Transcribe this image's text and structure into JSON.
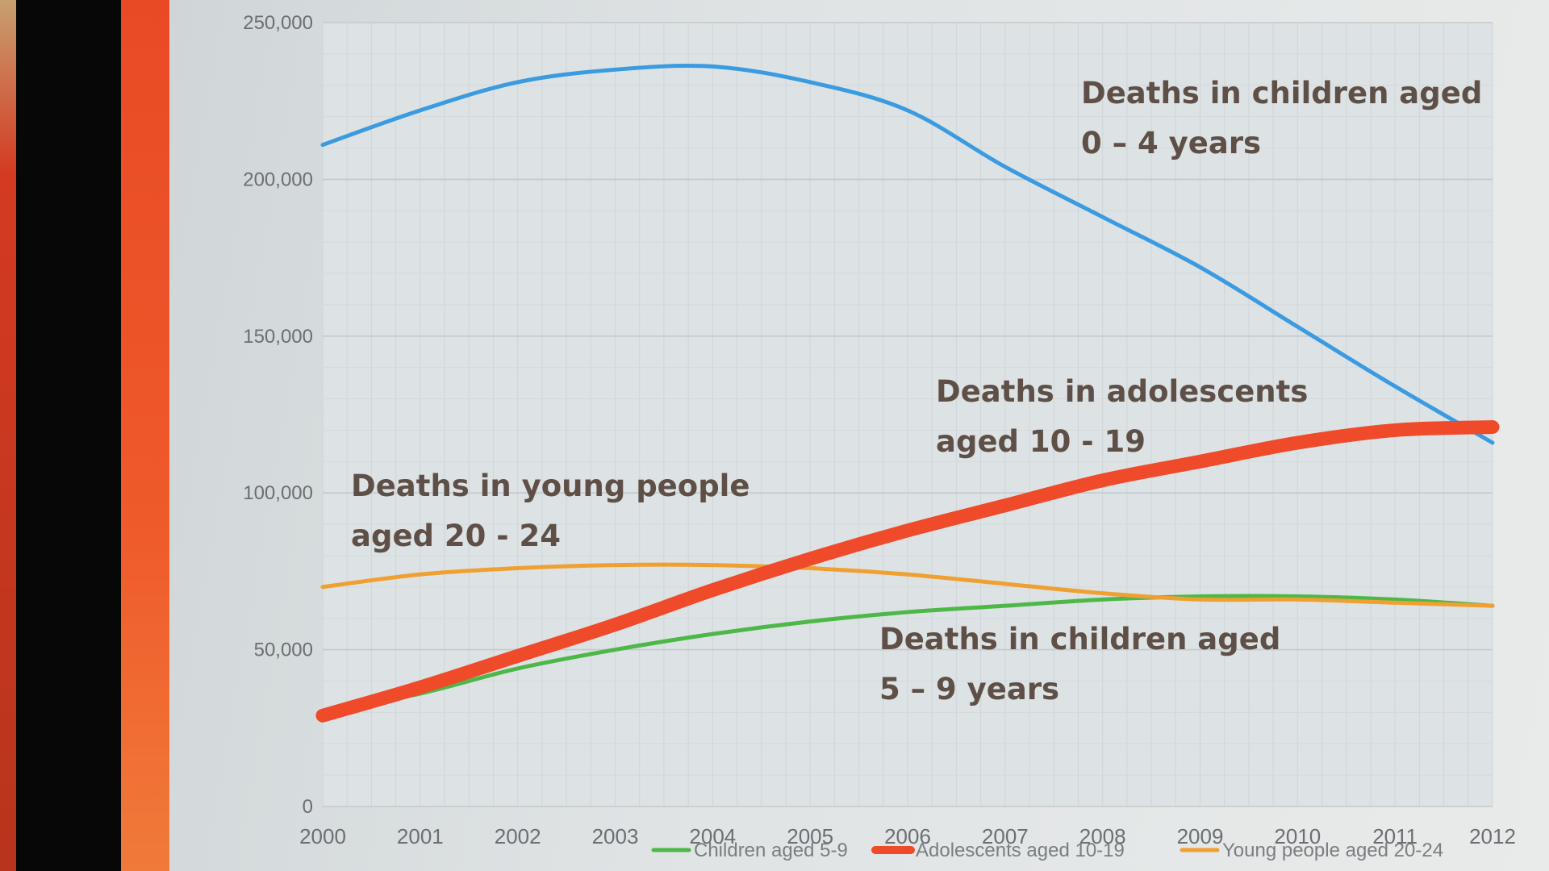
{
  "chart_data": {
    "type": "line",
    "title": "",
    "xlabel": "",
    "ylabel": "",
    "x": [
      "2000",
      "2001",
      "2002",
      "2003",
      "2004",
      "2005",
      "2006",
      "2007",
      "2008",
      "2009",
      "2010",
      "2011",
      "2012"
    ],
    "ylim": [
      0,
      250000
    ],
    "y_ticks": [
      "0",
      "50,000",
      "100,000",
      "150,000",
      "200,000",
      "250,000"
    ],
    "grid": true,
    "legend_position": "bottom",
    "series": [
      {
        "key": "c04",
        "name": "",
        "color": "#3b9be0",
        "values": [
          211000,
          222000,
          231000,
          235000,
          236000,
          231000,
          222000,
          204000,
          188000,
          172000,
          153000,
          134000,
          116000
        ]
      },
      {
        "key": "c59",
        "name": "Children aged 5-9",
        "color": "#4db848",
        "values": [
          30000,
          36000,
          44000,
          50000,
          55000,
          59000,
          62000,
          64000,
          66000,
          67000,
          67000,
          66000,
          64000
        ]
      },
      {
        "key": "adol",
        "name": "Adolescents aged 10-19",
        "color": "#ef4a2a",
        "values": [
          29000,
          38000,
          48000,
          58000,
          69000,
          79000,
          88000,
          96000,
          104000,
          110000,
          116000,
          120000,
          121000
        ]
      },
      {
        "key": "yp",
        "name": "Young people aged 20-24",
        "color": "#f0a030",
        "values": [
          70000,
          74000,
          76000,
          77000,
          77000,
          76000,
          74000,
          71000,
          68000,
          66000,
          66000,
          65000,
          64000
        ]
      }
    ],
    "annotations": [
      {
        "key": "c04",
        "lines": [
          "Deaths in children aged",
          "0 – 4 years"
        ]
      },
      {
        "key": "adol",
        "lines": [
          "Deaths in adolescents",
          "aged 10 - 19"
        ]
      },
      {
        "key": "yp",
        "lines": [
          "Deaths in young people",
          "aged 20 - 24"
        ]
      },
      {
        "key": "c59",
        "lines": [
          "Deaths in children aged",
          "5 – 9 years"
        ]
      }
    ],
    "legend_entries": [
      {
        "key": "c59",
        "label": "Children aged 5-9",
        "color": "#4db848"
      },
      {
        "key": "adol",
        "label": "Adolescents aged 10-19",
        "color": "#ef4a2a"
      },
      {
        "key": "yp",
        "label": "Young people aged 20-24",
        "color": "#f0a030"
      }
    ]
  }
}
